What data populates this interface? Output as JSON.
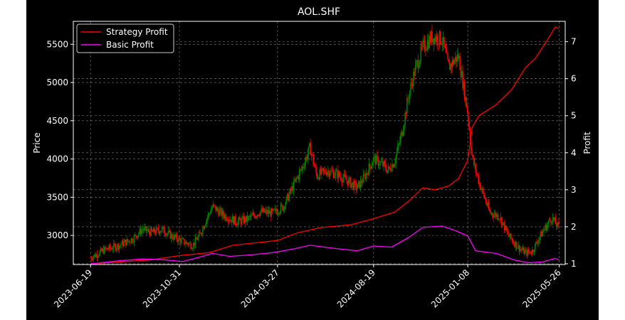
{
  "chart_data": {
    "type": "line",
    "title": "AOL.SHF",
    "ylabel": "Price",
    "y2label": "Profit",
    "xlabel": "",
    "x_ticks": [
      "2023-06-19",
      "2023-10-31",
      "2024-03-27",
      "2024-08-19",
      "2025-01-08",
      "2025-05-26"
    ],
    "y_ticks": [
      3000,
      3500,
      4000,
      4500,
      5000,
      5500
    ],
    "y2_ticks": [
      1,
      2,
      3,
      4,
      5,
      6,
      7
    ],
    "ylim": [
      2620,
      5800
    ],
    "y2lim": [
      0.98,
      7.55
    ],
    "xlim": [
      "2023-05-24",
      "2025-06-04"
    ],
    "grid": true,
    "legend_position": "top-left",
    "candles_up_color": "#008000",
    "candles_down_color": "#ff0000",
    "background": "#000000",
    "price_path": [
      [
        "2023-06-19",
        2710
      ],
      [
        "2023-07-10",
        2810
      ],
      [
        "2023-08-01",
        2870
      ],
      [
        "2023-08-22",
        2960
      ],
      [
        "2023-09-05",
        3080
      ],
      [
        "2023-09-20",
        3040
      ],
      [
        "2023-10-05",
        3080
      ],
      [
        "2023-10-20",
        2990
      ],
      [
        "2023-11-05",
        2920
      ],
      [
        "2023-11-20",
        2870
      ],
      [
        "2023-12-01",
        3010
      ],
      [
        "2023-12-10",
        3200
      ],
      [
        "2023-12-20",
        3380
      ],
      [
        "2024-01-05",
        3270
      ],
      [
        "2024-01-25",
        3180
      ],
      [
        "2024-02-10",
        3210
      ],
      [
        "2024-03-01",
        3310
      ],
      [
        "2024-03-20",
        3290
      ],
      [
        "2024-04-05",
        3380
      ],
      [
        "2024-04-20",
        3650
      ],
      [
        "2024-05-05",
        3920
      ],
      [
        "2024-05-15",
        4150
      ],
      [
        "2024-05-25",
        3780
      ],
      [
        "2024-06-10",
        3850
      ],
      [
        "2024-06-25",
        3800
      ],
      [
        "2024-07-10",
        3720
      ],
      [
        "2024-07-25",
        3620
      ],
      [
        "2024-08-05",
        3760
      ],
      [
        "2024-08-19",
        4000
      ],
      [
        "2024-09-01",
        3930
      ],
      [
        "2024-09-10",
        3850
      ],
      [
        "2024-09-20",
        3980
      ],
      [
        "2024-10-01",
        4350
      ],
      [
        "2024-10-10",
        4800
      ],
      [
        "2024-10-20",
        5150
      ],
      [
        "2024-11-01",
        5450
      ],
      [
        "2024-11-15",
        5600
      ],
      [
        "2024-11-30",
        5570
      ],
      [
        "2024-12-10",
        5200
      ],
      [
        "2024-12-25",
        5350
      ],
      [
        "2025-01-08",
        4600
      ],
      [
        "2025-01-15",
        4000
      ],
      [
        "2025-01-25",
        3700
      ],
      [
        "2025-02-10",
        3300
      ],
      [
        "2025-02-25",
        3250
      ],
      [
        "2025-03-10",
        3000
      ],
      [
        "2025-03-25",
        2850
      ],
      [
        "2025-04-05",
        2770
      ],
      [
        "2025-04-15",
        2790
      ],
      [
        "2025-05-01",
        3050
      ],
      [
        "2025-05-15",
        3230
      ],
      [
        "2025-05-26",
        3080
      ]
    ],
    "series": [
      {
        "name": "Strategy Profit",
        "color": "#ff0000",
        "points": [
          [
            "2023-06-19",
            1.0
          ],
          [
            "2023-08-01",
            1.05
          ],
          [
            "2023-09-15",
            1.1
          ],
          [
            "2023-10-31",
            1.22
          ],
          [
            "2023-12-15",
            1.3
          ],
          [
            "2024-01-20",
            1.5
          ],
          [
            "2024-03-01",
            1.58
          ],
          [
            "2024-03-27",
            1.63
          ],
          [
            "2024-04-25",
            1.83
          ],
          [
            "2024-06-01",
            1.98
          ],
          [
            "2024-07-15",
            2.05
          ],
          [
            "2024-08-19",
            2.22
          ],
          [
            "2024-09-20",
            2.4
          ],
          [
            "2024-10-15",
            2.75
          ],
          [
            "2024-11-01",
            3.05
          ],
          [
            "2024-11-20",
            3.0
          ],
          [
            "2024-12-10",
            3.1
          ],
          [
            "2024-12-25",
            3.3
          ],
          [
            "2025-01-08",
            3.8
          ],
          [
            "2025-01-15",
            4.7
          ],
          [
            "2025-01-25",
            5.0
          ],
          [
            "2025-02-20",
            5.3
          ],
          [
            "2025-03-15",
            5.7
          ],
          [
            "2025-04-05",
            6.3
          ],
          [
            "2025-04-20",
            6.55
          ],
          [
            "2025-05-10",
            7.1
          ],
          [
            "2025-05-20",
            7.4
          ],
          [
            "2025-05-26",
            7.35
          ]
        ]
      },
      {
        "name": "Basic Profit",
        "color": "#ff00ff",
        "points": [
          [
            "2023-06-19",
            1.0
          ],
          [
            "2023-08-01",
            1.08
          ],
          [
            "2023-09-05",
            1.13
          ],
          [
            "2023-10-05",
            1.11
          ],
          [
            "2023-11-05",
            1.06
          ],
          [
            "2023-12-05",
            1.2
          ],
          [
            "2023-12-20",
            1.28
          ],
          [
            "2024-01-15",
            1.2
          ],
          [
            "2024-02-15",
            1.24
          ],
          [
            "2024-03-20",
            1.3
          ],
          [
            "2024-04-20",
            1.4
          ],
          [
            "2024-05-15",
            1.5
          ],
          [
            "2024-06-20",
            1.42
          ],
          [
            "2024-07-25",
            1.35
          ],
          [
            "2024-08-19",
            1.48
          ],
          [
            "2024-09-15",
            1.45
          ],
          [
            "2024-10-10",
            1.7
          ],
          [
            "2024-11-01",
            1.98
          ],
          [
            "2024-11-30",
            2.02
          ],
          [
            "2024-12-20",
            1.9
          ],
          [
            "2025-01-08",
            1.75
          ],
          [
            "2025-01-20",
            1.35
          ],
          [
            "2025-02-20",
            1.28
          ],
          [
            "2025-03-20",
            1.1
          ],
          [
            "2025-04-10",
            1.03
          ],
          [
            "2025-05-01",
            1.05
          ],
          [
            "2025-05-20",
            1.15
          ],
          [
            "2025-05-26",
            1.1
          ]
        ]
      }
    ]
  }
}
